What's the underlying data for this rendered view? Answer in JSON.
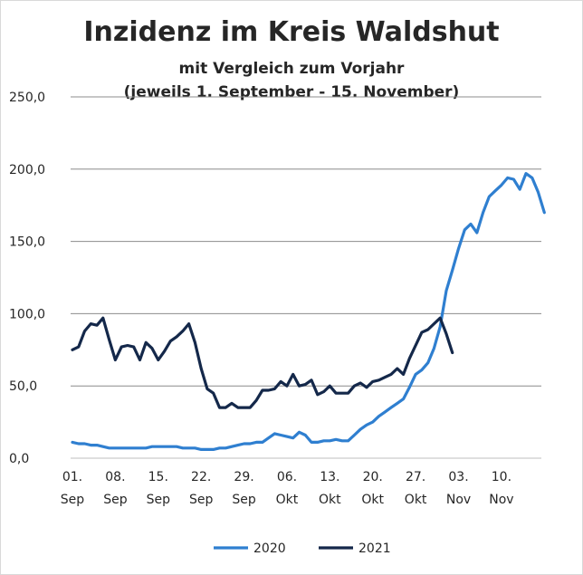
{
  "chart_data": {
    "type": "line",
    "title": "Inzidenz im Kreis Waldshut",
    "subtitle_line1": "mit Vergleich zum Vorjahr",
    "subtitle_line2": "(jeweils 1. September - 15. November)",
    "ylim": [
      0,
      250
    ],
    "yticks": [
      "0,0",
      "50,0",
      "100,0",
      "150,0",
      "200,0",
      "250,0"
    ],
    "x_ticks": [
      {
        "day": 0,
        "top": "01.",
        "bottom": "Sep"
      },
      {
        "day": 7,
        "top": "08.",
        "bottom": "Sep"
      },
      {
        "day": 14,
        "top": "15.",
        "bottom": "Sep"
      },
      {
        "day": 21,
        "top": "22.",
        "bottom": "Sep"
      },
      {
        "day": 28,
        "top": "29.",
        "bottom": "Sep"
      },
      {
        "day": 35,
        "top": "06.",
        "bottom": "Okt"
      },
      {
        "day": 42,
        "top": "13.",
        "bottom": "Okt"
      },
      {
        "day": 49,
        "top": "20.",
        "bottom": "Okt"
      },
      {
        "day": 56,
        "top": "27.",
        "bottom": "Okt"
      },
      {
        "day": 63,
        "top": "03.",
        "bottom": "Nov"
      },
      {
        "day": 70,
        "top": "10.",
        "bottom": "Nov"
      }
    ],
    "xlim": [
      0,
      75
    ],
    "grid": true,
    "legend_position": "bottom",
    "series": [
      {
        "name": "2020",
        "color": "#2f7fd0",
        "values": [
          11,
          10,
          10,
          9,
          9,
          8,
          7,
          7,
          7,
          7,
          7,
          7,
          7,
          8,
          8,
          8,
          8,
          8,
          7,
          7,
          7,
          6,
          6,
          6,
          7,
          7,
          8,
          9,
          10,
          10,
          11,
          11,
          14,
          17,
          16,
          15,
          14,
          18,
          16,
          11,
          11,
          12,
          12,
          13,
          12,
          12,
          16,
          20,
          23,
          25,
          29,
          32,
          35,
          38,
          41,
          49,
          58,
          61,
          66,
          76,
          91,
          116,
          130,
          145,
          158,
          162,
          156,
          170,
          181,
          185,
          189,
          194,
          193,
          186,
          197,
          194,
          184,
          170
        ]
      },
      {
        "name": "2021",
        "color": "#14284a",
        "values": [
          75,
          77,
          88,
          93,
          92,
          97,
          82,
          68,
          77,
          78,
          77,
          68,
          80,
          76,
          68,
          74,
          81,
          84,
          88,
          93,
          80,
          62,
          48,
          45,
          35,
          35,
          38,
          35,
          35,
          35,
          40,
          47,
          47,
          48,
          53,
          50,
          58,
          50,
          51,
          54,
          44,
          46,
          50,
          45,
          45,
          45,
          50,
          52,
          49,
          53,
          54,
          56,
          58,
          62,
          58,
          69,
          78,
          87,
          89,
          93,
          97,
          86,
          73
        ]
      }
    ]
  }
}
